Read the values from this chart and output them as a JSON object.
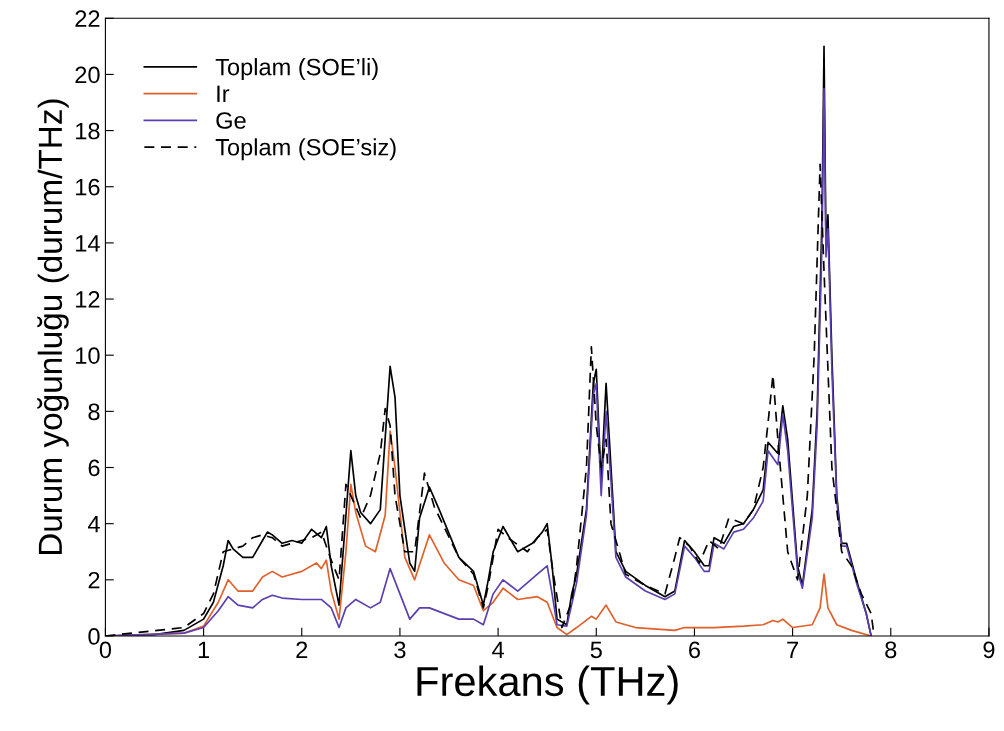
{
  "chart_data": {
    "type": "line",
    "xlabel": "Frekans (THz)",
    "ylabel": "Durum yoğunluğu (durum/THz)",
    "xlim": [
      0,
      9
    ],
    "ylim": [
      0,
      22
    ],
    "xticks": [
      0,
      1,
      2,
      3,
      4,
      5,
      6,
      7,
      8,
      9
    ],
    "yticks": [
      0,
      2,
      4,
      6,
      8,
      10,
      12,
      14,
      16,
      18,
      20,
      22
    ],
    "legend": "top left",
    "grid": false,
    "series": [
      {
        "name": "Toplam (SOE’li)",
        "color": "#000000",
        "line_style": "solid",
        "x": [
          0,
          0.5,
          0.8,
          1.0,
          1.1,
          1.2,
          1.25,
          1.3,
          1.4,
          1.5,
          1.6,
          1.65,
          1.7,
          1.8,
          1.9,
          2.0,
          2.1,
          2.2,
          2.25,
          2.3,
          2.38,
          2.45,
          2.5,
          2.55,
          2.6,
          2.7,
          2.8,
          2.9,
          2.95,
          3.0,
          3.1,
          3.15,
          3.2,
          3.3,
          3.4,
          3.6,
          3.75,
          3.85,
          3.9,
          3.95,
          4.05,
          4.2,
          4.35,
          4.45,
          4.5,
          4.55,
          4.6,
          4.7,
          4.75,
          4.8,
          4.9,
          4.97,
          5.0,
          5.05,
          5.1,
          5.15,
          5.2,
          5.3,
          5.5,
          5.7,
          5.8,
          5.9,
          6.0,
          6.1,
          6.15,
          6.2,
          6.3,
          6.4,
          6.5,
          6.6,
          6.7,
          6.75,
          6.85,
          6.9,
          6.95,
          7.05,
          7.1,
          7.2,
          7.25,
          7.3,
          7.32,
          7.34,
          7.36,
          7.4,
          7.45,
          7.5,
          7.55,
          7.65,
          7.75,
          7.8
        ],
        "values": [
          0,
          0.05,
          0.2,
          0.6,
          1.2,
          2.5,
          3.4,
          3.1,
          2.8,
          2.8,
          3.4,
          3.7,
          3.6,
          3.3,
          3.4,
          3.3,
          3.8,
          3.5,
          3.9,
          2.5,
          1.1,
          4.3,
          6.6,
          5.0,
          4.4,
          4.0,
          4.5,
          9.6,
          8.5,
          5.0,
          2.6,
          2.3,
          4.2,
          5.3,
          4.5,
          2.8,
          2.3,
          1.1,
          2.0,
          3.0,
          3.9,
          3.0,
          3.3,
          3.7,
          4.0,
          2.5,
          0.6,
          0.4,
          1.5,
          2.2,
          4.5,
          9.0,
          9.5,
          5.5,
          9.0,
          6.0,
          3.0,
          2.3,
          1.8,
          1.4,
          1.6,
          3.4,
          3.0,
          2.5,
          2.5,
          3.5,
          3.3,
          3.9,
          4.0,
          4.5,
          5.2,
          6.9,
          6.5,
          8.2,
          7.0,
          2.5,
          1.8,
          4.5,
          8.0,
          15.0,
          21.0,
          14.0,
          15.0,
          10.0,
          5.0,
          3.3,
          3.3,
          2.0,
          0.8,
          0
        ]
      },
      {
        "name": "Ir",
        "color": "#e0602a",
        "line_style": "solid",
        "x": [
          0,
          0.8,
          1.0,
          1.15,
          1.25,
          1.35,
          1.5,
          1.6,
          1.7,
          1.8,
          2.0,
          2.15,
          2.2,
          2.25,
          2.3,
          2.38,
          2.45,
          2.5,
          2.55,
          2.65,
          2.75,
          2.85,
          2.9,
          2.95,
          3.05,
          3.15,
          3.3,
          3.45,
          3.6,
          3.75,
          3.85,
          3.95,
          4.05,
          4.2,
          4.4,
          4.5,
          4.6,
          4.7,
          4.8,
          4.95,
          5.0,
          5.1,
          5.2,
          5.4,
          5.8,
          5.9,
          6.2,
          6.5,
          6.7,
          6.8,
          6.85,
          6.9,
          7.0,
          7.2,
          7.28,
          7.32,
          7.36,
          7.45,
          7.6,
          7.8
        ],
        "values": [
          0,
          0.1,
          0.35,
          1.2,
          2.0,
          1.6,
          1.6,
          2.1,
          2.3,
          2.1,
          2.3,
          2.6,
          2.4,
          2.7,
          1.6,
          0.6,
          3.0,
          5.4,
          4.4,
          3.2,
          3.0,
          4.3,
          7.3,
          6.0,
          2.8,
          2.0,
          3.6,
          2.6,
          2.0,
          1.8,
          0.9,
          1.2,
          1.7,
          1.3,
          1.4,
          1.2,
          0.3,
          0.05,
          0.3,
          0.7,
          0.6,
          1.1,
          0.5,
          0.3,
          0.2,
          0.3,
          0.3,
          0.35,
          0.4,
          0.55,
          0.5,
          0.6,
          0.3,
          0.4,
          1.0,
          2.2,
          1.0,
          0.4,
          0.2,
          0
        ]
      },
      {
        "name": "Ge",
        "color": "#5b3fb0",
        "line_style": "solid",
        "x": [
          0,
          0.8,
          1.0,
          1.15,
          1.25,
          1.35,
          1.5,
          1.6,
          1.7,
          1.8,
          2.0,
          2.2,
          2.3,
          2.38,
          2.45,
          2.55,
          2.7,
          2.8,
          2.9,
          3.0,
          3.1,
          3.2,
          3.3,
          3.6,
          3.75,
          3.85,
          3.95,
          4.05,
          4.2,
          4.4,
          4.5,
          4.55,
          4.6,
          4.7,
          4.8,
          4.9,
          4.97,
          5.0,
          5.05,
          5.1,
          5.15,
          5.2,
          5.3,
          5.5,
          5.7,
          5.8,
          5.9,
          6.0,
          6.1,
          6.15,
          6.2,
          6.3,
          6.4,
          6.5,
          6.6,
          6.7,
          6.75,
          6.85,
          6.9,
          6.95,
          7.05,
          7.1,
          7.2,
          7.25,
          7.3,
          7.32,
          7.34,
          7.36,
          7.4,
          7.45,
          7.5,
          7.55,
          7.65,
          7.75,
          7.8
        ],
        "values": [
          0,
          0.1,
          0.3,
          0.9,
          1.4,
          1.1,
          1.0,
          1.3,
          1.45,
          1.35,
          1.3,
          1.3,
          1.0,
          0.3,
          1.0,
          1.3,
          1.0,
          1.2,
          2.4,
          1.5,
          0.6,
          1.0,
          1.0,
          0.6,
          0.6,
          0.4,
          1.5,
          2.0,
          1.6,
          2.2,
          2.5,
          1.5,
          0.4,
          0.35,
          1.9,
          4.3,
          8.6,
          9.0,
          5.0,
          8.0,
          5.5,
          2.8,
          2.1,
          1.6,
          1.3,
          1.5,
          3.2,
          2.8,
          2.3,
          2.3,
          3.3,
          3.1,
          3.7,
          3.8,
          4.2,
          4.8,
          6.6,
          6.1,
          7.9,
          6.6,
          2.3,
          1.7,
          4.2,
          7.5,
          14.0,
          19.5,
          13.5,
          14.5,
          9.5,
          4.8,
          3.2,
          3.2,
          1.9,
          0.8,
          0
        ]
      },
      {
        "name": "Toplam (SOE’siz)",
        "color": "#000000",
        "line_style": "dashed",
        "x": [
          0,
          0.8,
          1.0,
          1.1,
          1.2,
          1.3,
          1.4,
          1.5,
          1.6,
          1.7,
          1.8,
          1.9,
          2.0,
          2.1,
          2.2,
          2.3,
          2.38,
          2.45,
          2.5,
          2.6,
          2.7,
          2.8,
          2.85,
          2.9,
          2.95,
          3.05,
          3.15,
          3.25,
          3.35,
          3.6,
          3.75,
          3.85,
          3.9,
          4.0,
          4.1,
          4.3,
          4.4,
          4.5,
          4.55,
          4.65,
          4.75,
          4.8,
          4.9,
          4.95,
          5.0,
          5.05,
          5.1,
          5.15,
          5.3,
          5.5,
          5.7,
          5.8,
          5.85,
          5.95,
          6.05,
          6.15,
          6.25,
          6.35,
          6.5,
          6.6,
          6.7,
          6.75,
          6.8,
          6.85,
          6.95,
          7.05,
          7.15,
          7.22,
          7.28,
          7.32,
          7.4,
          7.5,
          7.6,
          7.7,
          7.8,
          7.83
        ],
        "values": [
          0,
          0.3,
          0.8,
          1.5,
          3.0,
          3.1,
          3.2,
          3.5,
          3.6,
          3.5,
          3.2,
          3.3,
          3.4,
          3.5,
          3.7,
          2.7,
          2.0,
          5.4,
          5.0,
          4.2,
          5.0,
          6.5,
          8.1,
          7.5,
          5.0,
          3.0,
          3.0,
          5.8,
          4.6,
          2.8,
          2.2,
          1.0,
          1.8,
          3.8,
          3.5,
          3.0,
          3.5,
          3.8,
          2.5,
          0.3,
          1.2,
          2.5,
          6.0,
          10.3,
          7.5,
          6.0,
          7.0,
          4.0,
          2.2,
          1.8,
          1.5,
          2.8,
          3.5,
          3.2,
          2.6,
          3.4,
          3.1,
          4.2,
          4.0,
          4.5,
          6.0,
          7.6,
          9.3,
          7.0,
          3.0,
          2.0,
          5.0,
          10.0,
          16.8,
          13.0,
          6.0,
          3.0,
          2.5,
          1.5,
          0.8,
          0
        ]
      }
    ]
  }
}
